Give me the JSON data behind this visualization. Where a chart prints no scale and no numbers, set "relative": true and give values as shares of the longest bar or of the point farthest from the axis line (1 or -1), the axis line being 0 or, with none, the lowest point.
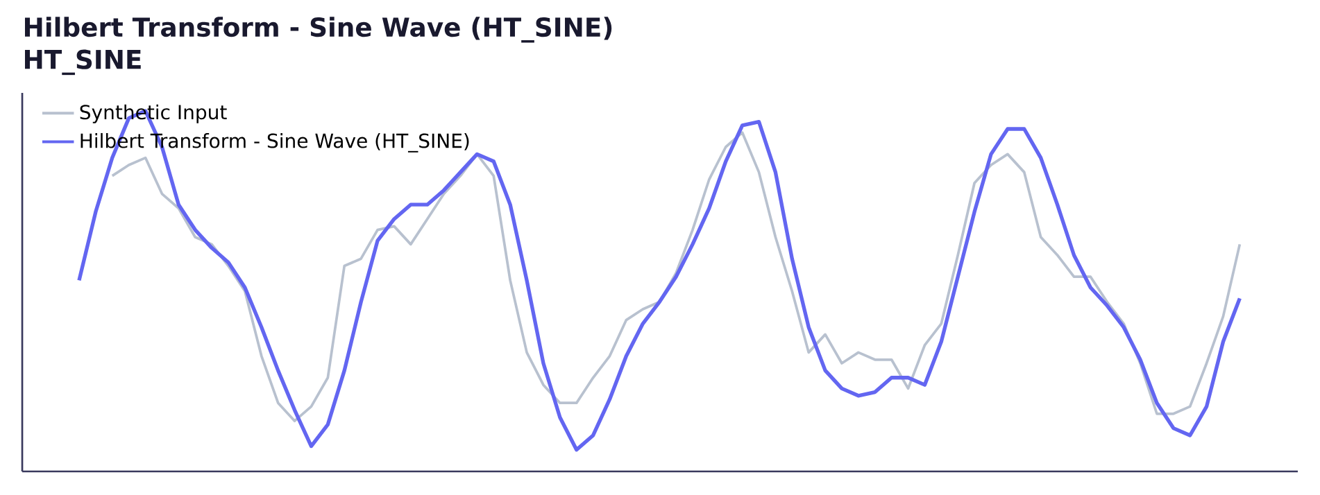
{
  "chart_data": {
    "type": "line",
    "title": "Hilbert Transform - Sine Wave (HT_SINE)",
    "subtitle": "HT_SINE",
    "relative": true,
    "legend": "top left",
    "marker": "none",
    "line_style": "solid",
    "categories": [
      null,
      null,
      null,
      null,
      null,
      null,
      null,
      null,
      null,
      null,
      null,
      null,
      null,
      null,
      null,
      null,
      null,
      null,
      null,
      null,
      null,
      null,
      null,
      null,
      null,
      null,
      null,
      null,
      null,
      null,
      null,
      null,
      null,
      null,
      null,
      null,
      null,
      null,
      null,
      null,
      null,
      null,
      null,
      null,
      null,
      null,
      null,
      null,
      null,
      null,
      null,
      null,
      null,
      null,
      null,
      null,
      null,
      null,
      null,
      null,
      null,
      null,
      null,
      null,
      null,
      null,
      null,
      null,
      null,
      null,
      null
    ],
    "series": [
      {
        "name": "Synthetic Input",
        "color": "#b8c1cf",
        "values": [
          null,
          null,
          0.82,
          0.85,
          0.87,
          0.77,
          0.73,
          0.65,
          0.63,
          0.57,
          0.5,
          0.32,
          0.19,
          0.14,
          0.18,
          0.26,
          0.57,
          0.59,
          0.67,
          0.68,
          0.63,
          0.7,
          0.77,
          0.82,
          0.88,
          0.82,
          0.53,
          0.33,
          0.24,
          0.19,
          0.19,
          0.26,
          0.32,
          0.42,
          0.45,
          0.47,
          0.55,
          0.67,
          0.81,
          0.9,
          0.94,
          0.83,
          0.65,
          0.5,
          0.33,
          0.38,
          0.3,
          0.33,
          0.31,
          0.31,
          0.23,
          0.35,
          0.41,
          0.6,
          0.8,
          0.85,
          0.88,
          0.83,
          0.65,
          0.6,
          0.54,
          0.54,
          0.47,
          0.41,
          0.3,
          0.16,
          0.16,
          0.18,
          0.3,
          0.43,
          0.63
        ]
      },
      {
        "name": "Hilbert Transform - Sine Wave (HT_SINE)",
        "color": "#6366f1",
        "values": [
          0.53,
          0.72,
          0.87,
          0.98,
          1.0,
          0.9,
          0.74,
          0.67,
          0.62,
          0.58,
          0.51,
          0.4,
          0.28,
          0.17,
          0.07,
          0.13,
          0.28,
          0.47,
          0.64,
          0.7,
          0.74,
          0.74,
          0.78,
          0.83,
          0.88,
          0.86,
          0.74,
          0.53,
          0.3,
          0.15,
          0.06,
          0.1,
          0.2,
          0.32,
          0.41,
          0.47,
          0.54,
          0.63,
          0.73,
          0.86,
          0.96,
          0.97,
          0.83,
          0.59,
          0.4,
          0.28,
          0.23,
          0.21,
          0.22,
          0.26,
          0.26,
          0.24,
          0.36,
          0.54,
          0.72,
          0.88,
          0.95,
          0.95,
          0.87,
          0.74,
          0.6,
          0.51,
          0.46,
          0.4,
          0.31,
          0.19,
          0.12,
          0.1,
          0.18,
          0.36,
          0.48
        ]
      }
    ]
  }
}
